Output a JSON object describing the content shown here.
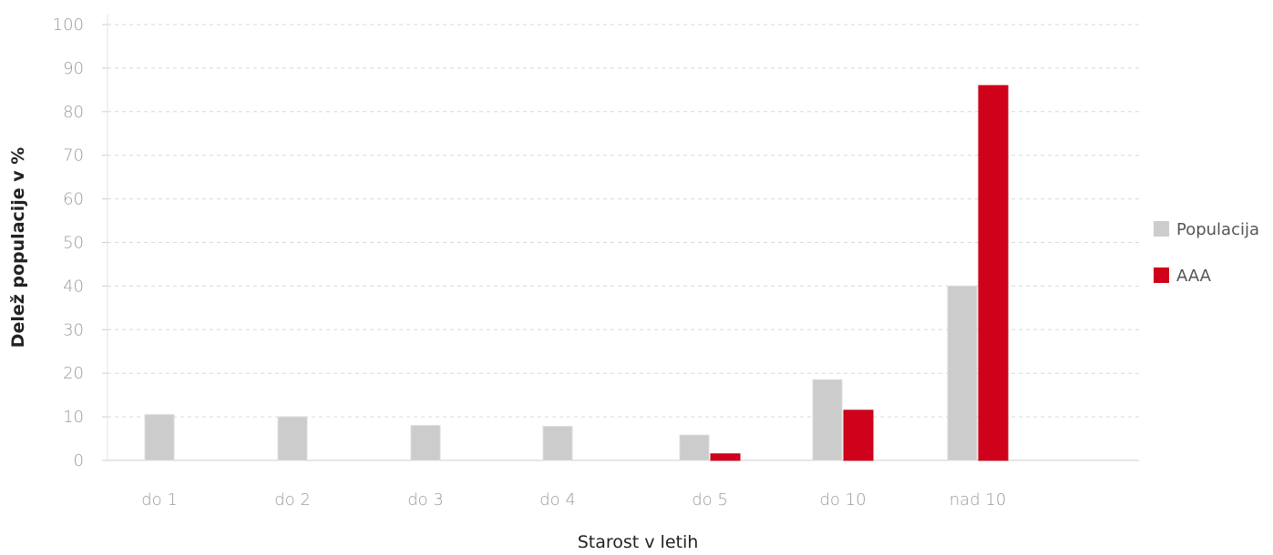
{
  "chart_data": {
    "type": "bar",
    "categories": [
      "do 1",
      "do 2",
      "do 3",
      "do 4",
      "do 5",
      "do 10",
      "nad 10"
    ],
    "series": [
      {
        "name": "Populacija",
        "values": [
          10.5,
          10,
          8,
          7.8,
          5.8,
          18.5,
          40
        ],
        "color": "#cccccc"
      },
      {
        "name": "AAA",
        "values": [
          null,
          null,
          null,
          null,
          1.5,
          11.5,
          86
        ],
        "color": "#d0021b"
      }
    ],
    "ylim": [
      0,
      100
    ],
    "yticks": [
      0,
      10,
      20,
      30,
      40,
      50,
      60,
      70,
      80,
      90,
      100
    ],
    "xlabel": "Starost v letih",
    "ylabel": "Delež populacije v %",
    "grid": true,
    "legend": "right"
  }
}
